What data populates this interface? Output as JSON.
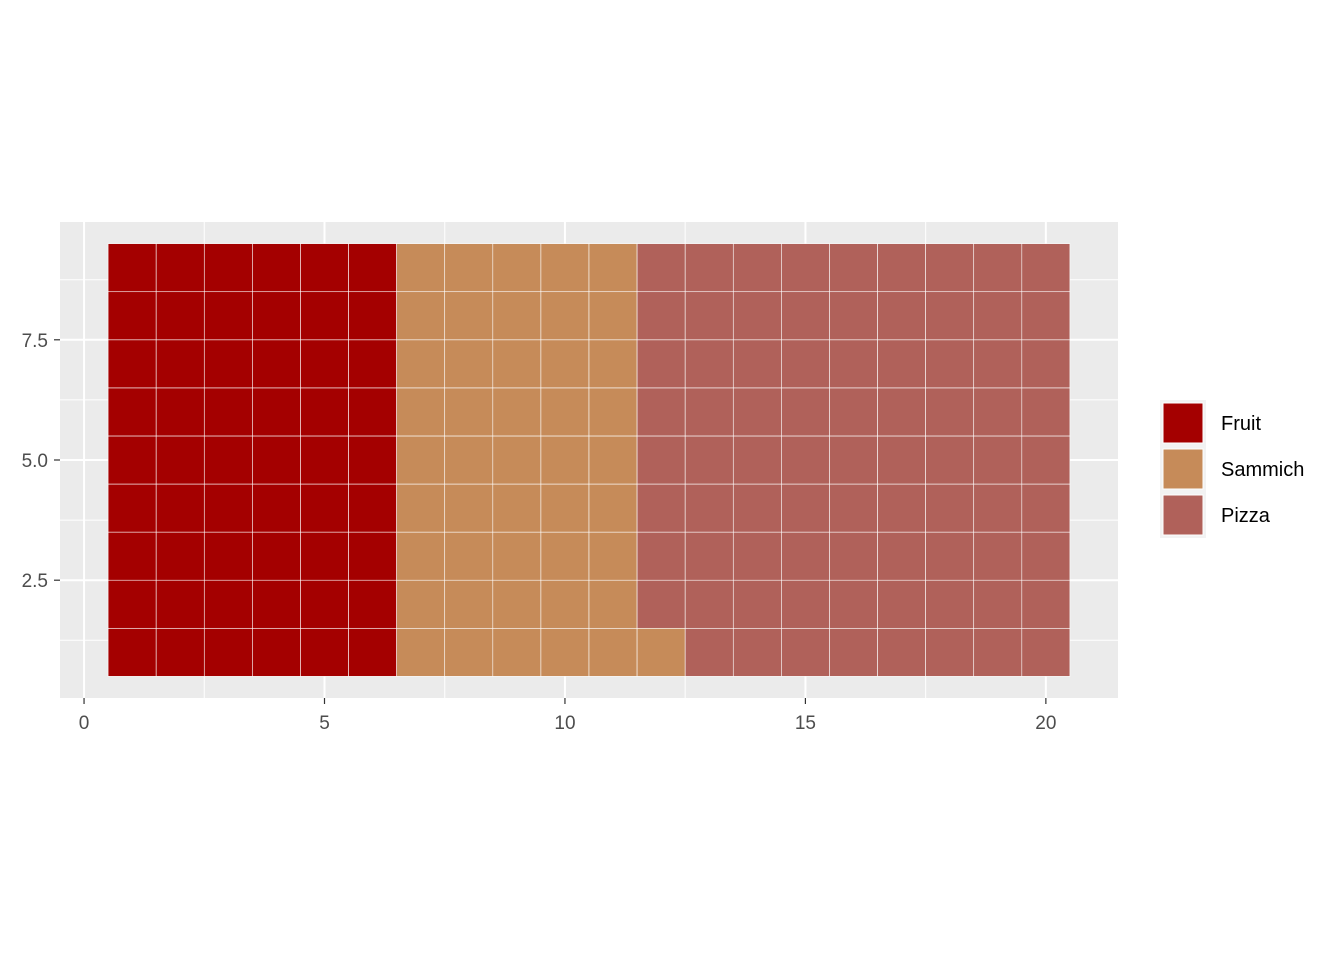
{
  "chart_data": {
    "type": "waffle",
    "columns": 20,
    "rows": 9,
    "categories": [
      "Fruit",
      "Sammich",
      "Pizza"
    ],
    "counts": [
      54,
      46,
      80
    ],
    "colors": [
      "#a40000",
      "#c68b59",
      "#b0615a"
    ],
    "xlim": [
      -0.5,
      21.5
    ],
    "ylim": [
      0.05,
      9.95
    ],
    "x_ticks": [
      0,
      5,
      10,
      15,
      20
    ],
    "x_tick_labels": [
      "0",
      "5",
      "10",
      "15",
      "20"
    ],
    "y_ticks": [
      2.5,
      5.0,
      7.5
    ],
    "y_tick_labels": [
      "2.5",
      "5.0",
      "7.5"
    ],
    "x_minor": [
      2.5,
      7.5,
      12.5,
      17.5
    ],
    "y_minor": [
      1.25,
      3.75,
      6.25,
      8.75
    ],
    "grid": true,
    "legend_position": "right",
    "panel_background": "#ebebeb"
  }
}
